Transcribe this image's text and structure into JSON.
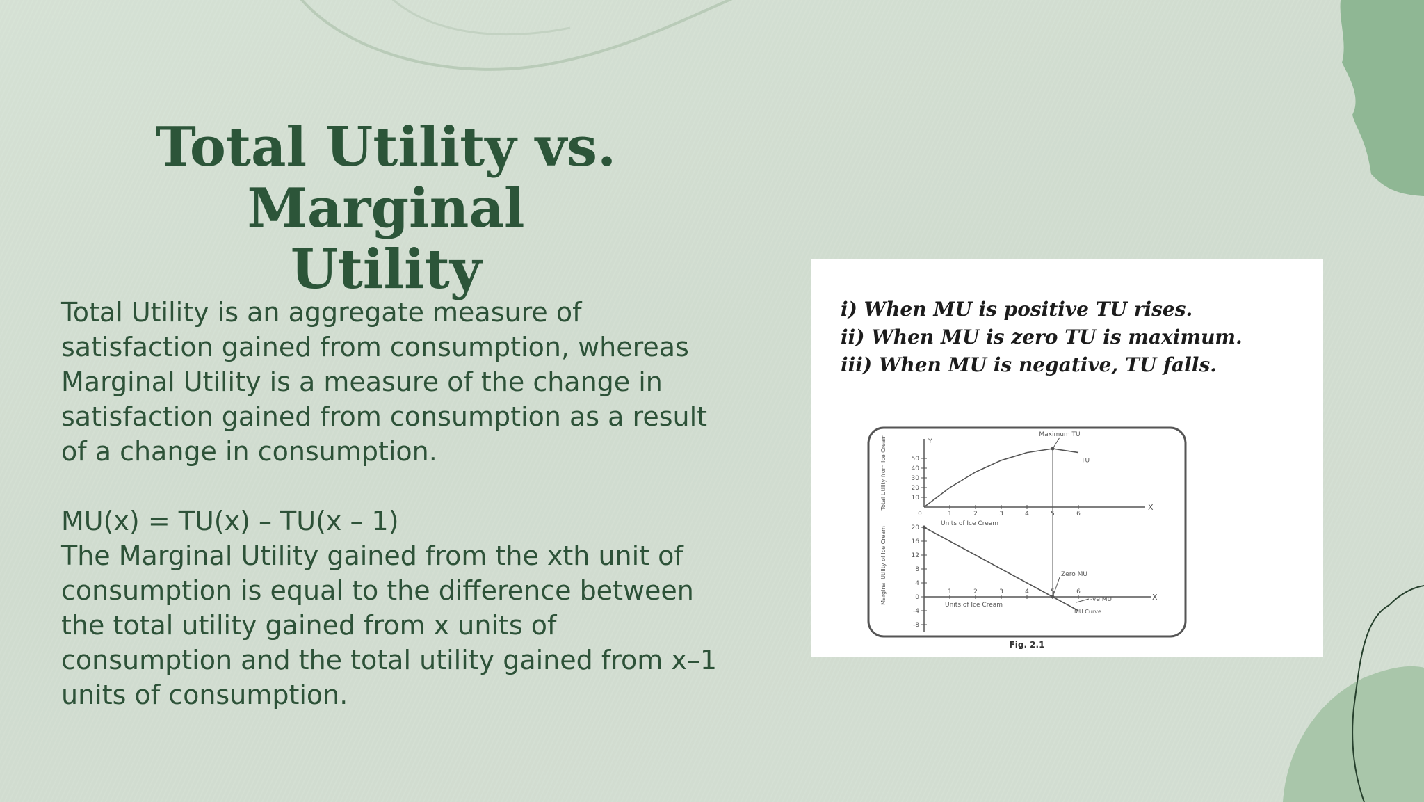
{
  "slide": {
    "title_line1": "Total Utility vs. Marginal",
    "title_line2": "Utility",
    "paragraph1": [
      "Total Utility is an aggregate measure of",
      "satisfaction gained from consumption, whereas",
      "Marginal Utility is a measure of the change in",
      "satisfaction gained from consumption as a result",
      "of a change in consumption."
    ],
    "formula": "MU(x) = TU(x) – TU(x – 1)",
    "paragraph2": [
      "The Marginal Utility gained from the xth unit of",
      "consumption is equal to the difference between",
      "the total utility gained from x units of",
      "consumption and the total utility gained from x–1",
      "units of consumption."
    ]
  },
  "figure": {
    "rules": [
      "i) When MU is positive TU rises.",
      "ii) When MU is zero TU is maximum.",
      "iii) When MU is negative, TU falls."
    ],
    "caption": "Fig. 2.1"
  },
  "chart_data": [
    {
      "type": "line",
      "title": "",
      "xlabel": "Units of Ice Cream",
      "ylabel": "Total Utility from Ice Cream",
      "x_ticks": [
        "0",
        "1",
        "2",
        "3",
        "4",
        "5",
        "6"
      ],
      "y_ticks": [
        "10",
        "20",
        "30",
        "40",
        "50"
      ],
      "x_axis_letter": "X",
      "y_axis_letter": "Y",
      "series": [
        {
          "name": "TU",
          "x": [
            0,
            1,
            2,
            3,
            4,
            5,
            6
          ],
          "values": [
            0,
            20,
            36,
            48,
            56,
            60,
            56
          ]
        }
      ],
      "annotations": [
        "Maximum TU"
      ],
      "ylim": [
        0,
        60
      ],
      "xlim": [
        0,
        7
      ]
    },
    {
      "type": "line",
      "title": "",
      "xlabel": "Units of Ice Cream",
      "ylabel": "Marginal Utility of Ice Cream",
      "x_ticks": [
        "0",
        "1",
        "2",
        "3",
        "4",
        "5",
        "6"
      ],
      "y_ticks": [
        "20",
        "16",
        "12",
        "8",
        "4",
        "0",
        "-4",
        "-8"
      ],
      "x_axis_letter": "X",
      "series": [
        {
          "name": "MU Curve",
          "x": [
            0,
            1,
            2,
            3,
            4,
            5,
            6
          ],
          "values": [
            20,
            16,
            12,
            8,
            4,
            0,
            -4
          ]
        }
      ],
      "annotations": [
        "Zero MU",
        "-ve MU"
      ],
      "ylim": [
        -8,
        24
      ],
      "xlim": [
        0,
        7
      ]
    }
  ],
  "colors": {
    "title": "#2c5539",
    "body_text": "#2d5238",
    "accent_green": "#8fb794"
  }
}
